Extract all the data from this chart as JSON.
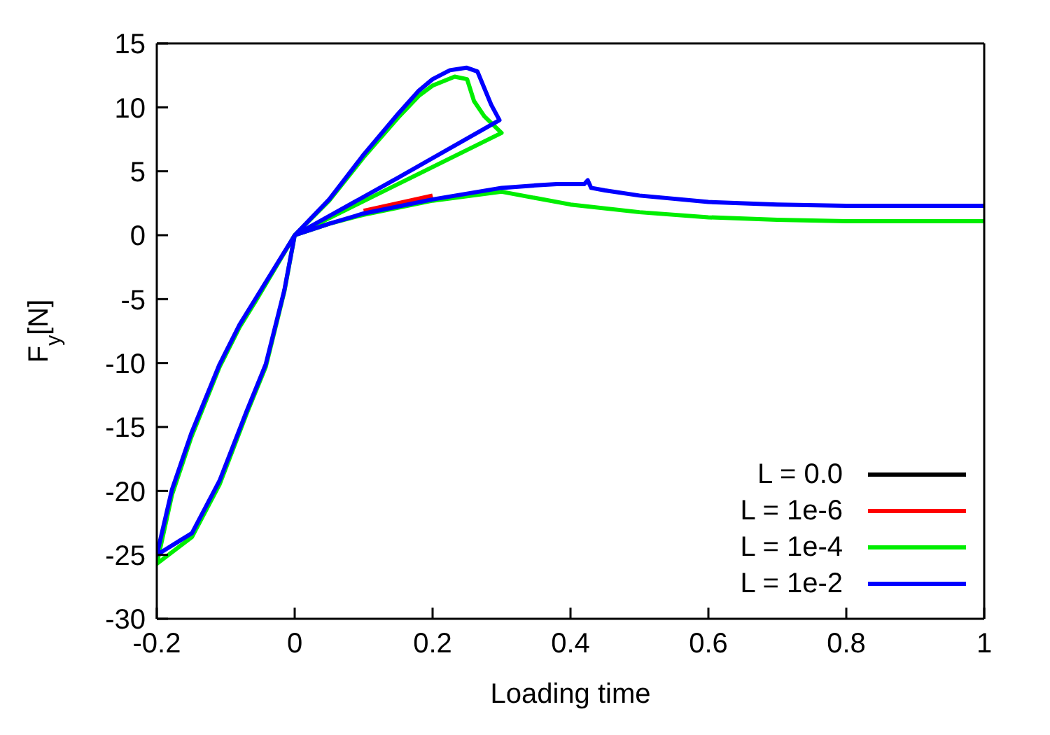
{
  "chart_data": {
    "type": "line",
    "xlabel": "Loading time",
    "ylabel": "F$_{y}$[N]",
    "xlim": [
      -0.2,
      1
    ],
    "ylim": [
      -30,
      15
    ],
    "xticks": [
      -0.2,
      0,
      0.2,
      0.4,
      0.6,
      0.8,
      1
    ],
    "yticks": [
      -30,
      -25,
      -20,
      -15,
      -10,
      -5,
      0,
      5,
      10,
      15
    ],
    "legend": "bottom right",
    "grid": false,
    "series": [
      {
        "name": "L = 0.0",
        "color": "#000000"
      },
      {
        "name": "L = 1e-6",
        "color": "#ff0000",
        "x": [
          0.2,
          0.1
        ],
        "values": [
          3.1,
          1.9
        ]
      },
      {
        "name": "L = 1e-4",
        "color": "#00ee00",
        "x": [
          1,
          0.9,
          0.8,
          0.7,
          0.6,
          0.5,
          0.4,
          0.35,
          0.3,
          0.2,
          0.1,
          0.05,
          0,
          0.05,
          0.1,
          0.15,
          0.18,
          0.2,
          0.232,
          0.25,
          0.26,
          0.275,
          0.3,
          0.15,
          0,
          -0.015,
          -0.042,
          -0.07,
          -0.109,
          -0.149,
          -0.2,
          -0.178,
          -0.15,
          -0.109,
          -0.08,
          -0.056,
          0
        ],
        "values": [
          1.1,
          1.1,
          1.1,
          1.2,
          1.4,
          1.8,
          2.4,
          2.9,
          3.4,
          2.7,
          1.6,
          0.9,
          0,
          2.7,
          6.1,
          9.2,
          10.9,
          11.7,
          12.4,
          12.2,
          10.5,
          9.3,
          8,
          4,
          0,
          -4.4,
          -10.3,
          -14,
          -19.5,
          -23.6,
          -25.7,
          -20.3,
          -15.8,
          -10.3,
          -7.2,
          -5.1,
          0
        ]
      },
      {
        "name": "L = 1e-2",
        "color": "#0000ff",
        "x": [
          1,
          0.9,
          0.8,
          0.7,
          0.6,
          0.5,
          0.45,
          0.43,
          0.425,
          0.42,
          0.38,
          0.35,
          0.3,
          0.2,
          0.1,
          0.05,
          0,
          0.05,
          0.1,
          0.15,
          0.18,
          0.2,
          0.225,
          0.249,
          0.265,
          0.275,
          0.285,
          0.297,
          0.15,
          0,
          -0.015,
          -0.042,
          -0.07,
          -0.109,
          -0.149,
          -0.2,
          -0.178,
          -0.15,
          -0.109,
          -0.08,
          -0.056,
          0
        ],
        "values": [
          2.3,
          2.3,
          2.3,
          2.4,
          2.6,
          3.1,
          3.5,
          3.7,
          4.3,
          4,
          4,
          3.9,
          3.7,
          2.8,
          1.7,
          0.9,
          0,
          2.8,
          6.3,
          9.5,
          11.3,
          12.2,
          12.9,
          13.1,
          12.8,
          11.5,
          10.2,
          9,
          4.5,
          0,
          -4.3,
          -10.1,
          -13.8,
          -19.2,
          -23.3,
          -25,
          -19.9,
          -15.5,
          -10.1,
          -7,
          -4.9,
          0
        ]
      }
    ]
  }
}
